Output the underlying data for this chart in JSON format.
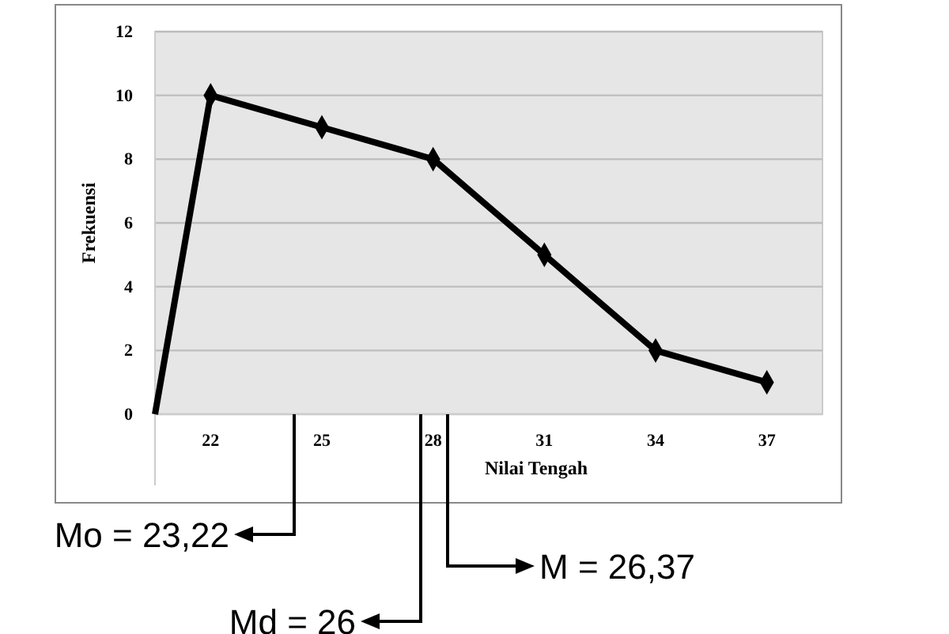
{
  "chart_data": {
    "type": "line",
    "xlabel": "Nilai Tengah",
    "ylabel": "Frekuensi",
    "x": [
      20.5,
      22,
      25,
      28,
      31,
      34,
      37
    ],
    "series": [
      {
        "color": "#000000",
        "values": [
          0,
          10,
          9,
          8,
          5,
          2,
          1
        ]
      }
    ],
    "xlim": [
      20.5,
      38.5
    ],
    "xticks": [
      22,
      25,
      28,
      31,
      34,
      37
    ],
    "ylim": [
      0,
      12
    ],
    "yticks": [
      0,
      2,
      4,
      6,
      8,
      10,
      12
    ],
    "grid": "y",
    "marker": "diamond",
    "line_style": "solid",
    "annotations": [
      "Mo = 23,22",
      "Md = 26",
      "M = 26,37"
    ]
  }
}
